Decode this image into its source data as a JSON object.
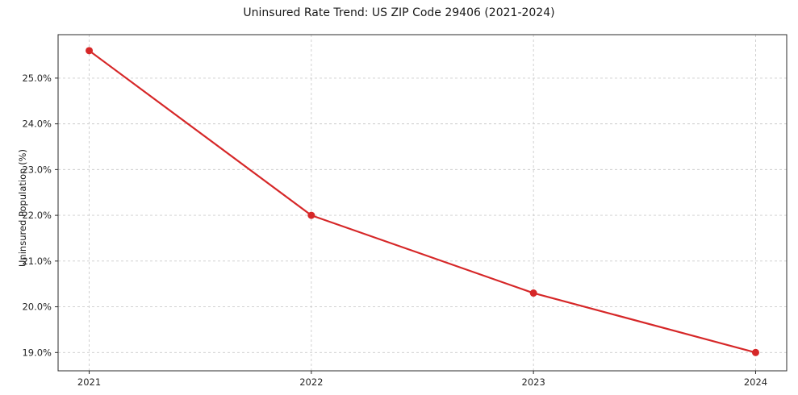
{
  "chart_data": {
    "type": "line",
    "title": "Uninsured Rate Trend: US ZIP Code 29406 (2021-2024)",
    "xlabel": "",
    "ylabel": "Uninsured Population (%)",
    "categories": [
      2021,
      2022,
      2023,
      2024
    ],
    "x_tick_labels": [
      "2021",
      "2022",
      "2023",
      "2024"
    ],
    "values": [
      25.6,
      22.0,
      20.3,
      19.0
    ],
    "y_ticks": [
      19.0,
      20.0,
      21.0,
      22.0,
      23.0,
      24.0,
      25.0
    ],
    "y_tick_labels": [
      "19.0%",
      "20.0%",
      "21.0%",
      "22.0%",
      "23.0%",
      "24.0%",
      "25.0%"
    ],
    "ylim": [
      18.6,
      25.95
    ],
    "xlim": [
      2020.86,
      2024.14
    ],
    "line_color": "#d62728",
    "marker": "circle",
    "grid": "dashed",
    "legend": "none"
  }
}
